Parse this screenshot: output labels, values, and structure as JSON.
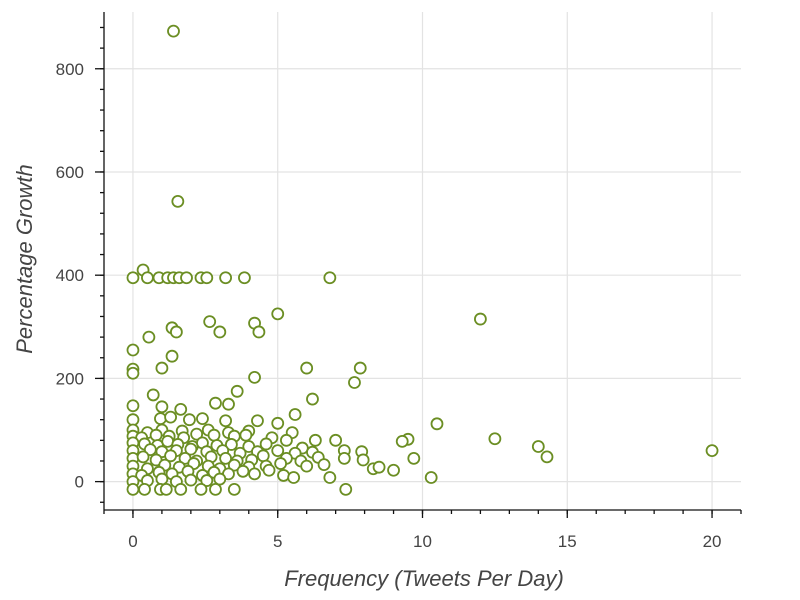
{
  "chart_data": {
    "type": "scatter",
    "xlabel": "Frequency (Tweets Per Day)",
    "ylabel": "Percentage Growth",
    "xlim": [
      -1,
      21
    ],
    "ylim": [
      -55,
      910
    ],
    "x_ticks": [
      0,
      5,
      10,
      15,
      20
    ],
    "x_minor_step": 1,
    "y_ticks": [
      0,
      200,
      400,
      600,
      800
    ],
    "y_minor_step": 40,
    "grid": true,
    "colors": {
      "marker": "#6b8e23",
      "marker_fill": "#ffffff",
      "grid": "#e3e3e3",
      "axis": "#111111",
      "text": "#444444"
    },
    "series": [
      {
        "points": [
          [
            1.4,
            873
          ],
          [
            1.55,
            543
          ],
          [
            0.35,
            410
          ],
          [
            0,
            395
          ],
          [
            0.5,
            395
          ],
          [
            0.9,
            395
          ],
          [
            1.2,
            395
          ],
          [
            1.4,
            395
          ],
          [
            1.6,
            395
          ],
          [
            1.85,
            395
          ],
          [
            2.35,
            395
          ],
          [
            2.55,
            395
          ],
          [
            3.2,
            395
          ],
          [
            3.85,
            395
          ],
          [
            6.8,
            395
          ],
          [
            12,
            315
          ],
          [
            5,
            325
          ],
          [
            2.65,
            310
          ],
          [
            4.2,
            307
          ],
          [
            1.35,
            298
          ],
          [
            1.5,
            290
          ],
          [
            3.0,
            290
          ],
          [
            4.35,
            290
          ],
          [
            0.55,
            280
          ],
          [
            0,
            255
          ],
          [
            1.35,
            243
          ],
          [
            0,
            218
          ],
          [
            0,
            210
          ],
          [
            1.0,
            220
          ],
          [
            6.0,
            220
          ],
          [
            7.85,
            220
          ],
          [
            6.2,
            160
          ],
          [
            7.65,
            192
          ],
          [
            4.2,
            202
          ],
          [
            3.6,
            175
          ],
          [
            0.7,
            168
          ],
          [
            0,
            147
          ],
          [
            1.0,
            145
          ],
          [
            1.65,
            140
          ],
          [
            2.85,
            152
          ],
          [
            3.3,
            150
          ],
          [
            5.6,
            130
          ],
          [
            0,
            120
          ],
          [
            0.95,
            122
          ],
          [
            1.3,
            125
          ],
          [
            1.95,
            120
          ],
          [
            2.4,
            122
          ],
          [
            3.2,
            118
          ],
          [
            4.3,
            118
          ],
          [
            5.0,
            113
          ],
          [
            10.5,
            112
          ],
          [
            0,
            100
          ],
          [
            0.5,
            95
          ],
          [
            1.0,
            100
          ],
          [
            1.7,
            98
          ],
          [
            2.6,
            100
          ],
          [
            3.3,
            95
          ],
          [
            4.0,
            98
          ],
          [
            5.5,
            95
          ],
          [
            6.3,
            80
          ],
          [
            7.0,
            80
          ],
          [
            0,
            88
          ],
          [
            0.3,
            85
          ],
          [
            0.8,
            90
          ],
          [
            1.25,
            88
          ],
          [
            1.75,
            85
          ],
          [
            2.2,
            92
          ],
          [
            2.8,
            90
          ],
          [
            3.5,
            88
          ],
          [
            3.9,
            90
          ],
          [
            4.8,
            85
          ],
          [
            12.5,
            83
          ],
          [
            9.5,
            82
          ],
          [
            9.3,
            78
          ],
          [
            5.3,
            80
          ],
          [
            0,
            75
          ],
          [
            0.4,
            73
          ],
          [
            0.85,
            70
          ],
          [
            1.2,
            78
          ],
          [
            1.55,
            72
          ],
          [
            2.05,
            68
          ],
          [
            2.4,
            75
          ],
          [
            2.9,
            70
          ],
          [
            3.4,
            72
          ],
          [
            4.0,
            68
          ],
          [
            4.6,
            73
          ],
          [
            5.85,
            65
          ],
          [
            14,
            68
          ],
          [
            0,
            60
          ],
          [
            0.6,
            62
          ],
          [
            1.0,
            58
          ],
          [
            1.5,
            60
          ],
          [
            2.0,
            63
          ],
          [
            2.55,
            58
          ],
          [
            3.1,
            60
          ],
          [
            3.7,
            55
          ],
          [
            4.3,
            58
          ],
          [
            5.0,
            60
          ],
          [
            5.6,
            55
          ],
          [
            6.2,
            57
          ],
          [
            7.3,
            60
          ],
          [
            7.9,
            58
          ],
          [
            20,
            60
          ],
          [
            0,
            45
          ],
          [
            0.35,
            48
          ],
          [
            0.8,
            42
          ],
          [
            1.3,
            50
          ],
          [
            1.8,
            45
          ],
          [
            2.2,
            40
          ],
          [
            2.7,
            48
          ],
          [
            3.2,
            45
          ],
          [
            3.6,
            40
          ],
          [
            4.1,
            42
          ],
          [
            4.5,
            50
          ],
          [
            5.3,
            45
          ],
          [
            5.8,
            40
          ],
          [
            6.4,
            47
          ],
          [
            7.3,
            45
          ],
          [
            7.95,
            42
          ],
          [
            9.7,
            45
          ],
          [
            14.3,
            48
          ],
          [
            0,
            30
          ],
          [
            0.5,
            25
          ],
          [
            1.1,
            32
          ],
          [
            1.6,
            28
          ],
          [
            2.1,
            35
          ],
          [
            2.6,
            30
          ],
          [
            3.0,
            25
          ],
          [
            3.5,
            32
          ],
          [
            4.0,
            28
          ],
          [
            4.6,
            30
          ],
          [
            5.1,
            35
          ],
          [
            6.0,
            30
          ],
          [
            6.6,
            33
          ],
          [
            8.3,
            25
          ],
          [
            8.5,
            28
          ],
          [
            9.0,
            22
          ],
          [
            0,
            15
          ],
          [
            0.3,
            12
          ],
          [
            0.9,
            18
          ],
          [
            1.35,
            15
          ],
          [
            1.9,
            20
          ],
          [
            2.4,
            12
          ],
          [
            2.8,
            18
          ],
          [
            3.3,
            15
          ],
          [
            3.8,
            20
          ],
          [
            4.2,
            15
          ],
          [
            4.7,
            22
          ],
          [
            5.2,
            12
          ],
          [
            5.55,
            8
          ],
          [
            6.8,
            8
          ],
          [
            10.3,
            8
          ],
          [
            0,
            0
          ],
          [
            0.5,
            2
          ],
          [
            1.0,
            5
          ],
          [
            1.5,
            0
          ],
          [
            2.0,
            3
          ],
          [
            2.55,
            2
          ],
          [
            3.0,
            5
          ],
          [
            0,
            -15
          ],
          [
            0.4,
            -15
          ],
          [
            0.95,
            -15
          ],
          [
            1.15,
            -15
          ],
          [
            1.65,
            -15
          ],
          [
            2.35,
            -15
          ],
          [
            2.85,
            -15
          ],
          [
            3.5,
            -15
          ],
          [
            7.35,
            -15
          ]
        ]
      }
    ]
  }
}
